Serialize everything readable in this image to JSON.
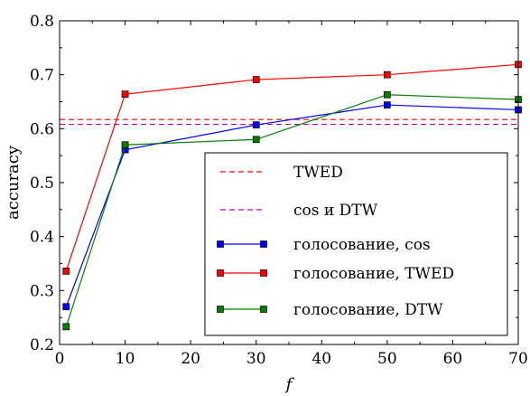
{
  "chart_data": {
    "type": "line",
    "xlabel": "f",
    "ylabel": "accuracy",
    "xlim": [
      0,
      70
    ],
    "ylim": [
      0.2,
      0.8
    ],
    "xticks": [
      "0",
      "10",
      "20",
      "30",
      "40",
      "50",
      "60",
      "70"
    ],
    "yticks": [
      "0.2",
      "0.3",
      "0.4",
      "0.5",
      "0.6",
      "0.7",
      "0.8"
    ],
    "grid": false,
    "legend_position": "lower-right",
    "reference_lines": [
      {
        "name": "TWED",
        "y": 0.617,
        "color": "#ff0000",
        "style": "dashed"
      },
      {
        "name": "cos и DTW",
        "y": 0.608,
        "color": "#bf00bf",
        "style": "dashed"
      }
    ],
    "series": [
      {
        "name": "голосование, cos",
        "color": "#0000ff",
        "x": [
          1,
          10,
          30,
          50,
          70
        ],
        "y": [
          0.27,
          0.561,
          0.607,
          0.644,
          0.635
        ]
      },
      {
        "name": "голосование, TWED",
        "color": "#ff0000",
        "x": [
          1,
          10,
          30,
          50,
          70
        ],
        "y": [
          0.336,
          0.664,
          0.691,
          0.7,
          0.719
        ]
      },
      {
        "name": "голосование, DTW",
        "color": "#008000",
        "x": [
          1,
          10,
          30,
          50,
          70
        ],
        "y": [
          0.233,
          0.57,
          0.58,
          0.663,
          0.654
        ]
      }
    ]
  }
}
